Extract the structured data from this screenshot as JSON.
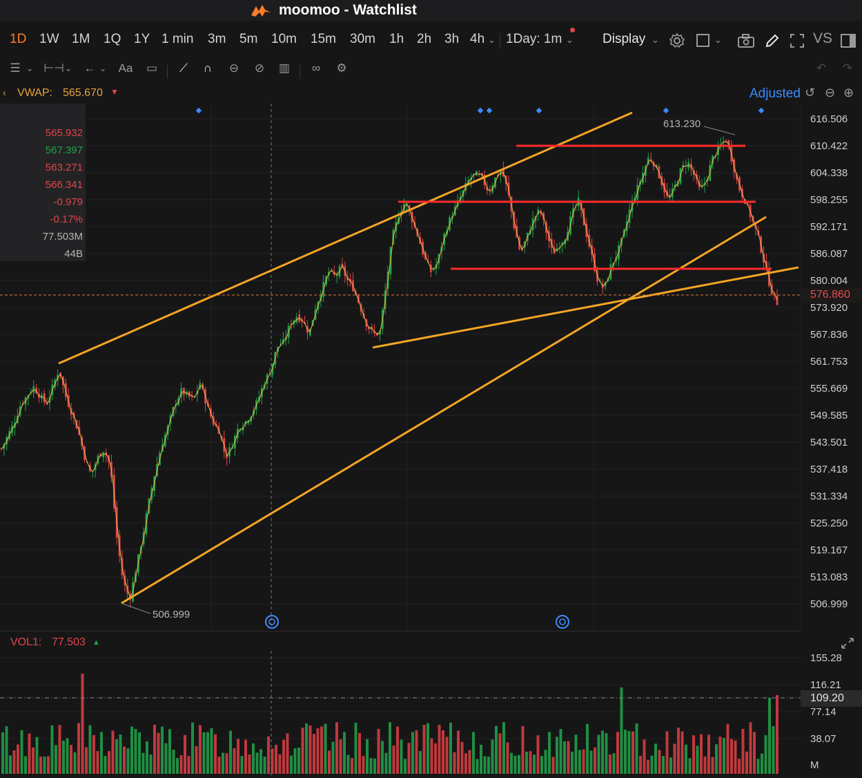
{
  "window": {
    "app_name": "moomoo",
    "separator": "-",
    "page": "Watchlist"
  },
  "timeframes": [
    {
      "label": "1D",
      "active": true
    },
    {
      "label": "1W"
    },
    {
      "label": "1M"
    },
    {
      "label": "1Q"
    },
    {
      "label": "1Y"
    },
    {
      "label": "1 min"
    },
    {
      "label": "3m"
    },
    {
      "label": "5m"
    },
    {
      "label": "10m"
    },
    {
      "label": "15m"
    },
    {
      "label": "30m"
    },
    {
      "label": "1h"
    },
    {
      "label": "2h"
    },
    {
      "label": "3h"
    },
    {
      "label": "4h"
    }
  ],
  "interval_select": "1Day: 1m",
  "display_button": "Display",
  "vs_label": "VS",
  "indicator": {
    "name": "VWAP:",
    "value": "565.670",
    "trend": "down"
  },
  "adjusted_label": "Adjusted",
  "info_panel": {
    "open": "565.932",
    "high": "567.397",
    "low": "563.271",
    "close": "566.341",
    "change": "-0.979",
    "change_pct": "-0.17%",
    "volume": "77.503M",
    "turnover": "44B"
  },
  "price_axis": [
    "616.506",
    "610.422",
    "604.338",
    "598.255",
    "592.171",
    "586.087",
    "580.004",
    "573.920",
    "567.836",
    "561.753",
    "555.669",
    "549.585",
    "543.501",
    "537.418",
    "531.334",
    "525.250",
    "519.167",
    "513.083",
    "506.999"
  ],
  "current_price": "576.860",
  "annotations": {
    "high": "613.230",
    "low": "506.999"
  },
  "volume": {
    "label": "VOL1:",
    "value": "77.503",
    "trend": "up",
    "axis": [
      "155.28",
      "116.21",
      "77.14",
      "38.07"
    ],
    "unit": "M",
    "current_tag": "109.20"
  },
  "colors": {
    "up": "#22a34a",
    "down": "#e0464a",
    "trendline": "#f5a524",
    "support": "#ff2b2b",
    "accent": "#ff7a29",
    "link": "#3d8bff"
  },
  "chart_data": {
    "type": "candlestick",
    "symbol_interval": "1Day: 1m",
    "y_range": [
      506.999,
      616.506
    ],
    "close_path": [
      542,
      545,
      548,
      552,
      554,
      556,
      554,
      552,
      556,
      560,
      554,
      550,
      546,
      540,
      536,
      540,
      542,
      538,
      522,
      512,
      508,
      515,
      522,
      530,
      537,
      543,
      547,
      552,
      555,
      554,
      553,
      557,
      552,
      548,
      546,
      540,
      543,
      547,
      548,
      550,
      553,
      557,
      560,
      565,
      566,
      570,
      572,
      571,
      568,
      574,
      578,
      582,
      581,
      583,
      580,
      578,
      574,
      570,
      568,
      568,
      579,
      590,
      595,
      598,
      594,
      590,
      585,
      582,
      584,
      590,
      594,
      597,
      600,
      603,
      604,
      603,
      600,
      603,
      605,
      600,
      592,
      586,
      590,
      594,
      596,
      591,
      586,
      588,
      590,
      595,
      598,
      592,
      586,
      580,
      578,
      583,
      586,
      590,
      596,
      600,
      604,
      608,
      606,
      602,
      598,
      601,
      605,
      607,
      604,
      600,
      603,
      608,
      610,
      612,
      607,
      601,
      598,
      594,
      590,
      584,
      578,
      575
    ]
  }
}
